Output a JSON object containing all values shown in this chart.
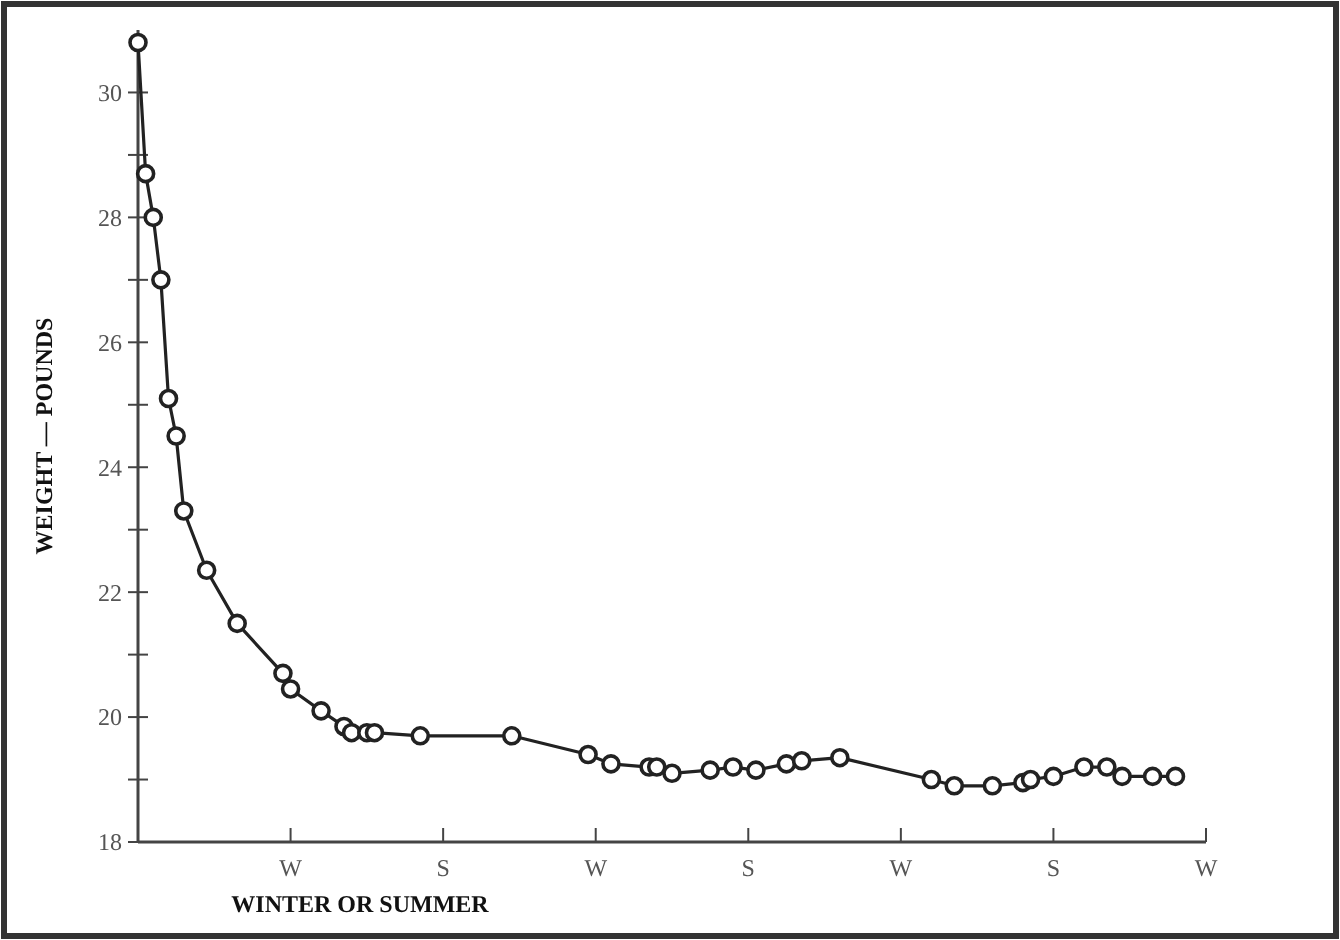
{
  "chart_data": {
    "type": "line",
    "xlabel": "WINTER OR SUMMER",
    "ylabel": "WEIGHT — POUNDS",
    "categories": [
      null,
      null,
      null,
      null,
      null,
      null,
      null,
      null,
      null,
      null,
      null,
      null,
      null,
      null,
      null,
      null,
      null,
      null,
      null,
      null,
      "W",
      null,
      null,
      null,
      null,
      null,
      null,
      null,
      null,
      null,
      null,
      null,
      null,
      null,
      null,
      null,
      null,
      null,
      null,
      null,
      "S",
      null,
      null,
      null,
      null,
      null,
      null,
      null,
      null,
      null,
      null,
      null,
      null,
      null,
      null,
      null,
      null,
      null,
      null,
      null,
      "W",
      null,
      null,
      null,
      null,
      null,
      null,
      null,
      null,
      null,
      null,
      null,
      null,
      null,
      null,
      null,
      null,
      null,
      null,
      null,
      "S",
      null,
      null,
      null,
      null,
      null,
      null,
      null,
      null,
      null,
      null,
      null,
      null,
      null,
      null,
      null,
      null,
      null,
      null,
      null,
      "W",
      null,
      null,
      null,
      null,
      null,
      null,
      null,
      null,
      null,
      null,
      null,
      null,
      null,
      null,
      null,
      null,
      null,
      null,
      null,
      "S",
      null,
      null,
      null,
      null,
      null,
      null,
      null,
      null,
      null,
      null,
      null,
      null,
      null,
      null,
      null,
      null,
      null,
      null,
      null,
      "W"
    ],
    "ylim": [
      18,
      31
    ],
    "yticks": [
      18,
      {
        "value": 19,
        "label": null
      },
      20,
      {
        "value": 21,
        "label": null
      },
      22,
      {
        "value": 23,
        "label": null
      },
      24,
      {
        "value": 25,
        "label": null
      },
      26,
      {
        "value": 27,
        "label": null
      },
      28,
      {
        "value": 29,
        "label": null
      },
      30
    ],
    "marker": "circle",
    "line_style": "solid",
    "series": [
      {
        "color": "#222222",
        "values": [
          30.8,
          28.7,
          28.0,
          27.0,
          25.1,
          24.5,
          23.3,
          null,
          null,
          22.35,
          null,
          null,
          null,
          21.5,
          null,
          null,
          null,
          null,
          null,
          20.7,
          20.45,
          null,
          null,
          null,
          20.1,
          null,
          null,
          19.85,
          19.75,
          null,
          19.75,
          19.75,
          null,
          null,
          null,
          null,
          null,
          19.7,
          null,
          null,
          null,
          null,
          null,
          null,
          null,
          null,
          null,
          null,
          null,
          19.7,
          null,
          null,
          null,
          null,
          null,
          null,
          null,
          null,
          null,
          19.4,
          null,
          null,
          19.25,
          null,
          null,
          null,
          null,
          19.2,
          19.2,
          null,
          19.1,
          null,
          null,
          null,
          null,
          19.15,
          null,
          null,
          19.2,
          null,
          null,
          19.15,
          null,
          null,
          null,
          19.25,
          null,
          19.3,
          null,
          null,
          null,
          null,
          19.35,
          null,
          null,
          null,
          null,
          null,
          null,
          null,
          null,
          null,
          null,
          null,
          19.0,
          null,
          null,
          18.9,
          null,
          null,
          null,
          null,
          18.9,
          null,
          null,
          null,
          18.95,
          19.0,
          null,
          null,
          19.05,
          null,
          null,
          null,
          19.2,
          null,
          null,
          19.2,
          null,
          19.05,
          null,
          null,
          null,
          19.05,
          null,
          null,
          19.05,
          null,
          null,
          null,
          null
        ]
      }
    ]
  }
}
